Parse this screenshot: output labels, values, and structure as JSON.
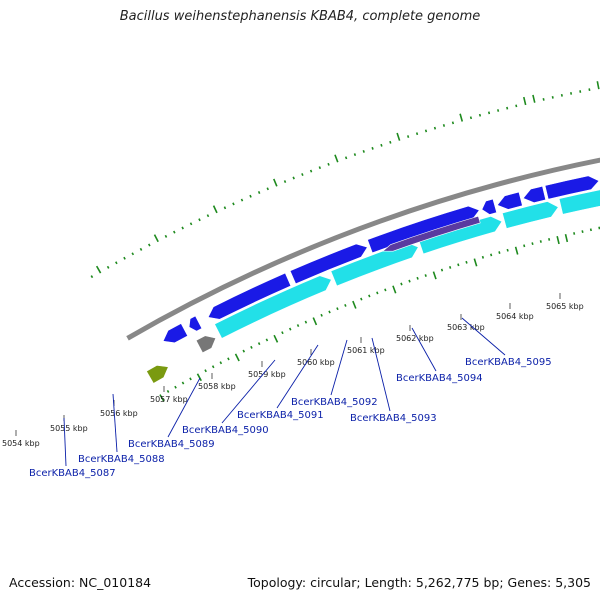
{
  "title": "Bacillus weihenstephanensis KBAB4, complete genome",
  "footer": {
    "accession": "Accession: NC_010184",
    "topology": "Topology: circular; Length: 5,262,775 bp; Genes: 5,305"
  },
  "colors": {
    "forward_gene": "#1a1ae6",
    "reverse_gene": "#22e0e8",
    "highlight_gene": "#5a3aa0",
    "rna": "#7a9a10",
    "pseudo": "#777777",
    "backbone": "#888888",
    "label": "#0a1fa8",
    "gc_ticks": "#1e8a1e"
  },
  "scale_ticks": [
    "5054 kbp",
    "5055 kbp",
    "5056 kbp",
    "5057 kbp",
    "5058 kbp",
    "5059 kbp",
    "5060 kbp",
    "5061 kbp",
    "5062 kbp",
    "5063 kbp",
    "5064 kbp",
    "5065 kbp"
  ],
  "gene_labels": [
    "BcerKBAB4_5087",
    "BcerKBAB4_5088",
    "BcerKBAB4_5089",
    "BcerKBAB4_5090",
    "BcerKBAB4_5091",
    "BcerKBAB4_5092",
    "BcerKBAB4_5093",
    "BcerKBAB4_5094",
    "BcerKBAB4_5095"
  ]
}
